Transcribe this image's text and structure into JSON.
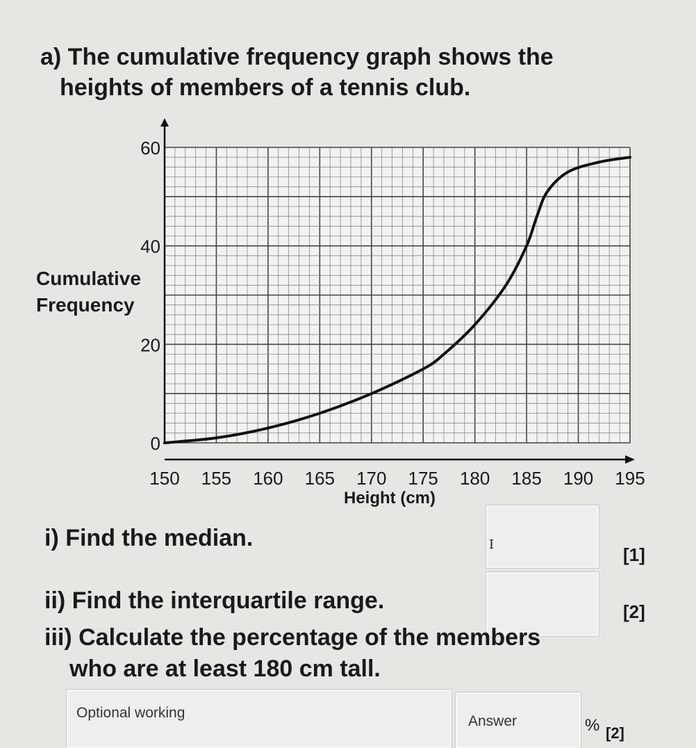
{
  "question": {
    "intro_line1": "a) The cumulative frequency graph shows the",
    "intro_line2": "heights of members of a tennis club.",
    "part_i": "i) Find the median.",
    "part_i_marks": "[1]",
    "part_ii": "ii) Find the interquartile range.",
    "part_ii_marks": "[2]",
    "part_iii_line1": "iii) Calculate the percentage of the members",
    "part_iii_line2": "who are at least 180 cm tall.",
    "part_iii_marks": "[2]",
    "working_placeholder": "Optional working",
    "answer_label": "Answer",
    "percent_unit": "%"
  },
  "chart_data": {
    "type": "line",
    "title": "",
    "xlabel": "Height (cm)",
    "ylabel": "Cumulative Frequency",
    "xlim": [
      150,
      195
    ],
    "ylim": [
      0,
      60
    ],
    "xticks": [
      "150",
      "155",
      "160",
      "165",
      "170",
      "175",
      "180",
      "185",
      "190",
      "195"
    ],
    "yticks": [
      "0",
      "20",
      "40",
      "60"
    ],
    "grid": true,
    "x": [
      150,
      155,
      160,
      165,
      170,
      175,
      177,
      180,
      183,
      185,
      186,
      187,
      189,
      192,
      195
    ],
    "y": [
      0,
      1,
      3,
      6,
      10,
      15,
      18,
      24,
      32,
      40,
      46,
      51,
      55,
      57,
      58
    ],
    "line_color": "#111111"
  }
}
